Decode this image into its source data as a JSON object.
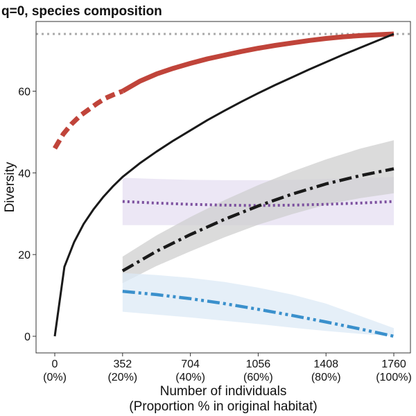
{
  "chart_data": {
    "type": "line",
    "title": "q=0, species composition",
    "ylabel": "Diversity",
    "xlabel_line1": "Number of individuals",
    "xlabel_line2": "(Proportion % in original habitat)",
    "xlim": [
      0,
      1760
    ],
    "ylim": [
      0,
      74
    ],
    "grid": false,
    "x_ticks": [
      {
        "value": 0,
        "label": "0",
        "sublabel": "(0%)"
      },
      {
        "value": 352,
        "label": "352",
        "sublabel": "(20%)"
      },
      {
        "value": 704,
        "label": "704",
        "sublabel": "(40%)"
      },
      {
        "value": 1056,
        "label": "1056",
        "sublabel": "(60%)"
      },
      {
        "value": 1408,
        "label": "1408",
        "sublabel": "(80%)"
      },
      {
        "value": 1760,
        "label": "1760",
        "sublabel": "(100%)"
      }
    ],
    "y_ticks": [
      {
        "value": 0,
        "label": "0"
      },
      {
        "value": 20,
        "label": "20"
      },
      {
        "value": 40,
        "label": "40"
      },
      {
        "value": 60,
        "label": "60"
      }
    ],
    "reference_line": {
      "y": 74,
      "color": "#aaaaaa",
      "style": "dotted"
    },
    "series": [
      {
        "key": "red",
        "color": "#c0443a",
        "segments": [
          {
            "style": "dashed",
            "x": [
              0,
              44,
              88,
              132,
              176,
              220,
              264,
              308,
              352
            ],
            "y": [
              46,
              49.5,
              52,
              54,
              55.5,
              57,
              58.3,
              59.2,
              60
            ]
          },
          {
            "style": "solid",
            "x": [
              352,
              440,
              528,
              616,
              704,
              792,
              880,
              968,
              1056,
              1144,
              1232,
              1320,
              1408,
              1496,
              1584,
              1672,
              1760
            ],
            "y": [
              60,
              62.4,
              64.2,
              65.6,
              66.8,
              67.9,
              68.8,
              69.7,
              70.5,
              71.2,
              71.8,
              72.4,
              72.9,
              73.3,
              73.6,
              73.8,
              74
            ]
          }
        ]
      },
      {
        "key": "black-rarefaction",
        "color": "#1a1a1a",
        "segments": [
          {
            "style": "solid",
            "x": [
              0,
              50,
              100,
              150,
              200,
              250,
              300,
              352,
              440,
              528,
              616,
              704,
              792,
              880,
              968,
              1056,
              1144,
              1232,
              1320,
              1408,
              1496,
              1584,
              1672,
              1760
            ],
            "y": [
              0,
              17,
              23,
              27.5,
              31,
              34,
              36.6,
              39,
              42.3,
              45.2,
              47.9,
              50.4,
              52.9,
              55.2,
              57.4,
              59.5,
              61.5,
              63.4,
              65.3,
              67.1,
              68.9,
              70.6,
              72.3,
              74
            ]
          }
        ]
      },
      {
        "key": "purple",
        "color": "#7b4f9e",
        "ci_color": "#e6dff2",
        "segments": [
          {
            "style": "dotted",
            "x": [
              352,
              528,
              704,
              880,
              1056,
              1232,
              1408,
              1584,
              1760
            ],
            "y": [
              33,
              32.6,
              32.3,
              32.1,
              32,
              32.1,
              32.3,
              32.6,
              33
            ]
          }
        ],
        "ci": {
          "x": [
            352,
            528,
            704,
            880,
            1056,
            1232,
            1408,
            1584,
            1760
          ],
          "lower": [
            27.2,
            27.2,
            27.2,
            27.2,
            27.2,
            27.2,
            27.2,
            27.2,
            27.2
          ],
          "upper": [
            38.8,
            38.5,
            38.3,
            38.2,
            38.2,
            38.3,
            38.5,
            38.7,
            39
          ]
        }
      },
      {
        "key": "black-dashdot",
        "color": "#1a1a1a",
        "ci_color": "#cfcfcf",
        "segments": [
          {
            "style": "dashdot",
            "x": [
              352,
              528,
              704,
              880,
              1056,
              1232,
              1408,
              1584,
              1760
            ],
            "y": [
              16,
              20.8,
              24.9,
              28.6,
              31.9,
              34.8,
              37.3,
              39.3,
              41
            ]
          }
        ],
        "ci": {
          "x": [
            352,
            528,
            704,
            880,
            1056,
            1232,
            1408,
            1584,
            1760
          ],
          "lower": [
            13,
            17.2,
            20.8,
            24.2,
            27.3,
            29.9,
            32.2,
            33.8,
            35
          ],
          "upper": [
            19.5,
            24.7,
            29.2,
            33.3,
            37,
            40.3,
            43.3,
            45.9,
            48
          ]
        }
      },
      {
        "key": "blue",
        "color": "#3a90cc",
        "ci_color": "#dce9f6",
        "segments": [
          {
            "style": "dashdotdot",
            "x": [
              352,
              528,
              704,
              880,
              1056,
              1232,
              1408,
              1584,
              1760
            ],
            "y": [
              11,
              10.2,
              9.2,
              8,
              6.6,
              5.1,
              3.5,
              1.8,
              0
            ]
          }
        ],
        "ci": {
          "x": [
            352,
            528,
            704,
            880,
            1056,
            1232,
            1408,
            1584,
            1760
          ],
          "lower": [
            6,
            5.3,
            4.6,
            3.8,
            3,
            2.1,
            1.3,
            0.6,
            0
          ],
          "upper": [
            15.5,
            15,
            14.3,
            13.3,
            11.9,
            10.2,
            8,
            5,
            2
          ]
        }
      }
    ]
  }
}
